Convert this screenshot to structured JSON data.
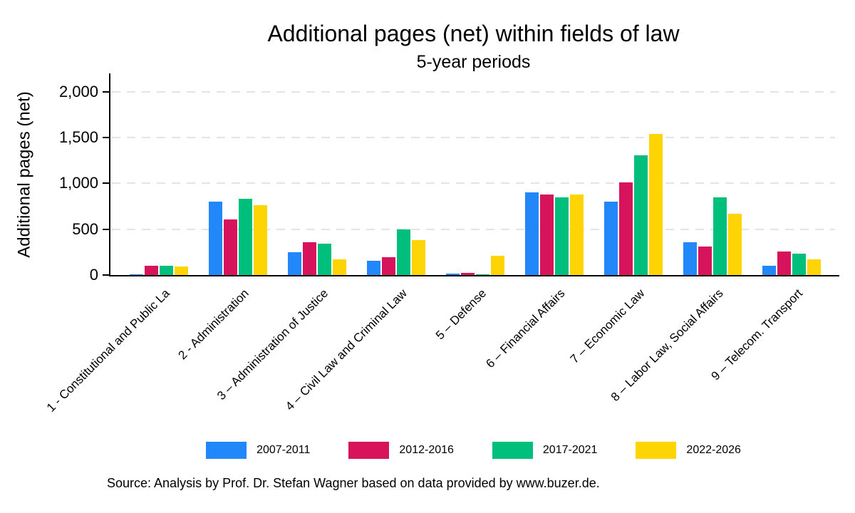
{
  "chart_data": {
    "type": "bar",
    "title": "Additional pages (net) within fields of law",
    "subtitle": "5-year periods",
    "ylabel": "Additional pages (net)",
    "xlabel": "",
    "ylim": [
      0,
      2200
    ],
    "ytick_values": [
      0,
      500,
      1000,
      1500,
      2000
    ],
    "ytick_labels": [
      "0",
      "500",
      "1,000",
      "1,500",
      "2,000"
    ],
    "grid": "horizontal dashed light-gray",
    "legend_position": "bottom center",
    "bar_colors_note": "series order left-to-right within each group",
    "categories": [
      "1 - Constitutional and Public La",
      "2 - Administration",
      "3 – Administration of Justice",
      "4 – Civil Law and Criminal Law",
      "5 – Defense",
      "6 – Financial Affairs",
      "7 – Economic Law",
      "8 – Labor Law, Social Affairs",
      "9 – Telecom. Transport"
    ],
    "series": [
      {
        "name": "2007-2011",
        "color": "#2287f9",
        "values": [
          10,
          800,
          250,
          155,
          15,
          905,
          800,
          360,
          100
        ]
      },
      {
        "name": "2012-2016",
        "color": "#d6135b",
        "values": [
          100,
          605,
          355,
          195,
          20,
          875,
          1010,
          310,
          260
        ]
      },
      {
        "name": "2017-2021",
        "color": "#00bf7d",
        "values": [
          100,
          835,
          345,
          500,
          10,
          845,
          1310,
          850,
          235
        ]
      },
      {
        "name": "2022-2026",
        "color": "#ffd404",
        "values": [
          90,
          760,
          170,
          380,
          210,
          875,
          1540,
          670,
          170
        ]
      }
    ],
    "note": "Source: Analysis by Prof. Dr. Stefan Wagner based on data provided by www.buzer.de."
  }
}
